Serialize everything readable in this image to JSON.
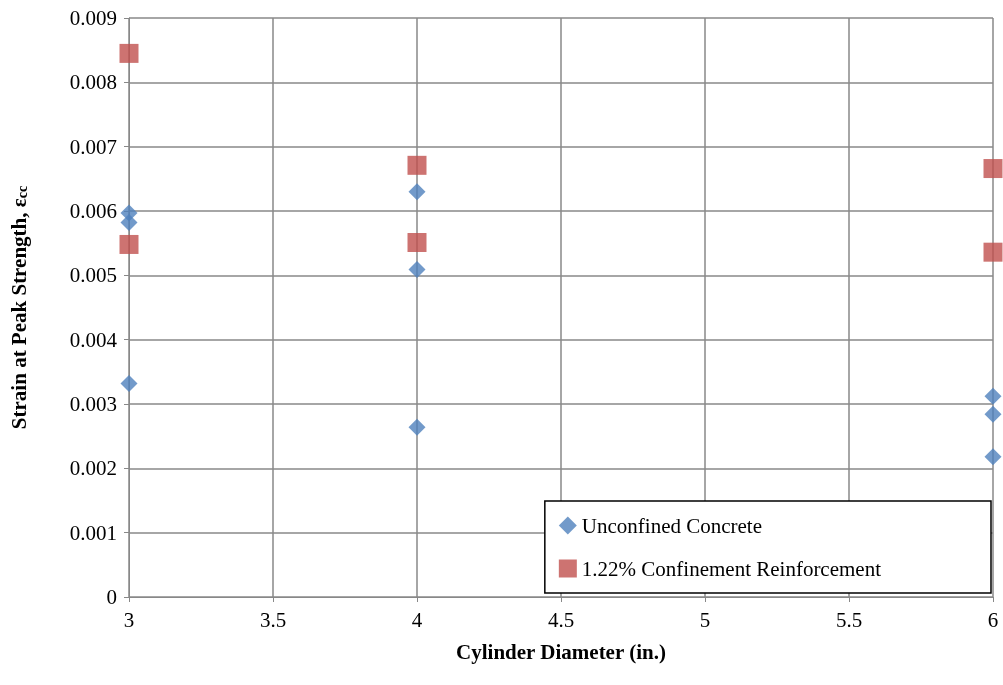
{
  "chart_data": {
    "type": "scatter",
    "xlabel": "Cylinder Diameter (in.)",
    "ylabel": "Strain at Peak Strength, ε$_{cc}$",
    "xlim": [
      3,
      6
    ],
    "xticks": [
      3,
      3.5,
      4,
      4.5,
      5,
      5.5,
      6
    ],
    "ylim": [
      0,
      0.009
    ],
    "yticks": [
      0,
      0.001,
      0.002,
      0.003,
      0.004,
      0.005,
      0.006,
      0.007,
      0.008,
      0.009
    ],
    "grid": true,
    "legend": "bottom right",
    "series": [
      {
        "name": "Unconfined Concrete",
        "color": "#4f81bd",
        "marker": "diamond",
        "x": [
          3,
          3,
          3,
          4,
          4,
          4,
          6,
          6,
          6
        ],
        "values": [
          0.00597,
          0.00582,
          0.00332,
          0.0063,
          0.00509,
          0.00264,
          0.00312,
          0.00284,
          0.00218
        ]
      },
      {
        "name": "1.22% Confinement Reinforcement",
        "color": "#c0504d",
        "marker": "square",
        "x": [
          3,
          3,
          4,
          4,
          6,
          6
        ],
        "values": [
          0.00845,
          0.00548,
          0.00671,
          0.00551,
          0.00666,
          0.00536
        ]
      }
    ]
  }
}
